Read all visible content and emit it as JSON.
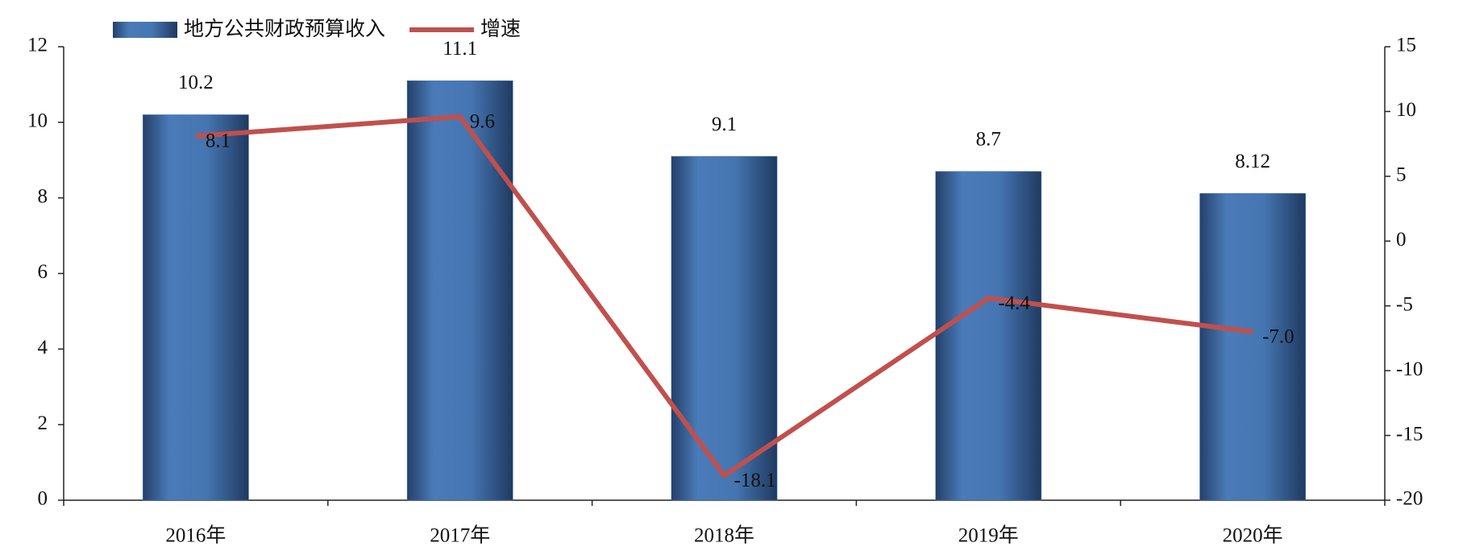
{
  "chart_data": {
    "type": "bar",
    "categories": [
      "2016年",
      "2017年",
      "2018年",
      "2019年",
      "2020年"
    ],
    "series": [
      {
        "name": "地方公共财政预算收入",
        "type": "bar",
        "color": "#3f6ea8",
        "values": [
          10.2,
          11.1,
          9.1,
          8.7,
          8.12
        ]
      },
      {
        "name": "增速",
        "type": "line",
        "color": "#c0504d",
        "axis": "y2",
        "values": [
          8.1,
          9.6,
          -18.1,
          -4.4,
          -7.0
        ],
        "value_labels": [
          "8.1",
          "9.6",
          "-18.1",
          "-4.4",
          "-7.0"
        ]
      }
    ],
    "ylim": [
      0,
      12
    ],
    "yticks": [
      0,
      2,
      4,
      6,
      8,
      10,
      12
    ],
    "y2lim": [
      -20,
      15
    ],
    "y2ticks": [
      -20,
      -15,
      -10,
      -5,
      0,
      5,
      10,
      15
    ],
    "legend": "top"
  }
}
